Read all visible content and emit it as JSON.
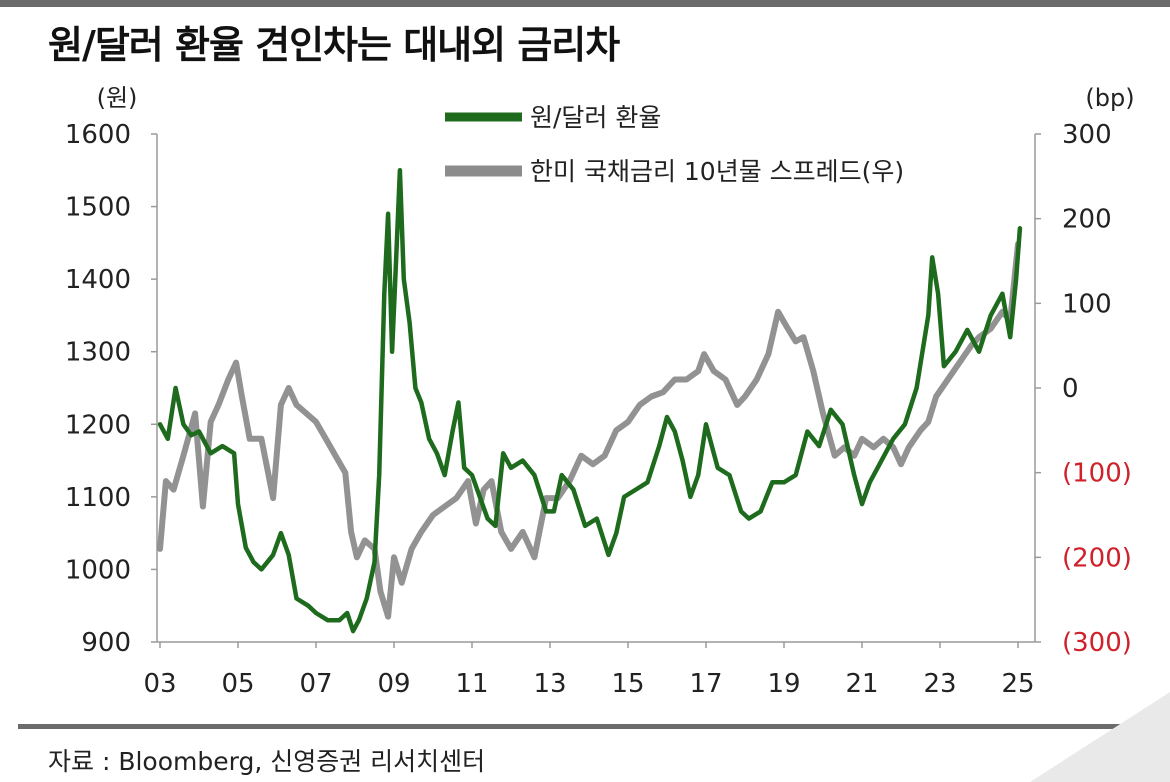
{
  "title": "원/달러 환율 견인차는 대내외 금리차",
  "source": "자료 : Bloomberg, 신영증권 리서치센터",
  "chart_data": {
    "type": "line",
    "title": "원/달러 환율 견인차는 대내외 금리차",
    "left_axis": {
      "unit_label": "(원)",
      "ticks": [
        "1600",
        "1500",
        "1400",
        "1300",
        "1200",
        "1100",
        "1000",
        "900"
      ],
      "range": [
        900,
        1600
      ]
    },
    "right_axis": {
      "unit_label": "(bp)",
      "ticks": [
        "300",
        "200",
        "100",
        "0",
        "(100)",
        "(200)",
        "(300)"
      ],
      "range": [
        -300,
        300
      ],
      "negative_color": "#d0202a"
    },
    "x_axis": {
      "ticks": [
        "03",
        "05",
        "07",
        "09",
        "11",
        "13",
        "15",
        "17",
        "19",
        "21",
        "23",
        "25"
      ],
      "range": [
        2003,
        2025
      ]
    },
    "legend_position": "top-center",
    "grid": false,
    "series": [
      {
        "name": "원/달러 환율",
        "axis": "left",
        "color": "#1e6b1e",
        "points": [
          [
            2003.0,
            1200
          ],
          [
            2003.2,
            1180
          ],
          [
            2003.4,
            1250
          ],
          [
            2003.6,
            1200
          ],
          [
            2003.8,
            1185
          ],
          [
            2004.0,
            1190
          ],
          [
            2004.3,
            1160
          ],
          [
            2004.6,
            1170
          ],
          [
            2004.9,
            1160
          ],
          [
            2005.0,
            1090
          ],
          [
            2005.2,
            1030
          ],
          [
            2005.4,
            1010
          ],
          [
            2005.6,
            1000
          ],
          [
            2005.9,
            1020
          ],
          [
            2006.1,
            1050
          ],
          [
            2006.3,
            1020
          ],
          [
            2006.5,
            960
          ],
          [
            2006.8,
            950
          ],
          [
            2007.0,
            940
          ],
          [
            2007.3,
            930
          ],
          [
            2007.6,
            930
          ],
          [
            2007.8,
            940
          ],
          [
            2007.95,
            915
          ],
          [
            2008.1,
            930
          ],
          [
            2008.3,
            960
          ],
          [
            2008.5,
            1010
          ],
          [
            2008.62,
            1130
          ],
          [
            2008.75,
            1380
          ],
          [
            2008.85,
            1490
          ],
          [
            2008.95,
            1300
          ],
          [
            2009.05,
            1420
          ],
          [
            2009.15,
            1550
          ],
          [
            2009.25,
            1400
          ],
          [
            2009.4,
            1340
          ],
          [
            2009.55,
            1250
          ],
          [
            2009.7,
            1230
          ],
          [
            2009.9,
            1180
          ],
          [
            2010.1,
            1160
          ],
          [
            2010.3,
            1130
          ],
          [
            2010.5,
            1190
          ],
          [
            2010.65,
            1230
          ],
          [
            2010.8,
            1140
          ],
          [
            2011.0,
            1130
          ],
          [
            2011.2,
            1100
          ],
          [
            2011.4,
            1070
          ],
          [
            2011.6,
            1060
          ],
          [
            2011.8,
            1160
          ],
          [
            2012.0,
            1140
          ],
          [
            2012.3,
            1150
          ],
          [
            2012.6,
            1130
          ],
          [
            2012.9,
            1080
          ],
          [
            2013.1,
            1080
          ],
          [
            2013.3,
            1130
          ],
          [
            2013.6,
            1110
          ],
          [
            2013.9,
            1060
          ],
          [
            2014.2,
            1070
          ],
          [
            2014.5,
            1020
          ],
          [
            2014.7,
            1050
          ],
          [
            2014.9,
            1100
          ],
          [
            2015.2,
            1110
          ],
          [
            2015.5,
            1120
          ],
          [
            2015.8,
            1170
          ],
          [
            2016.0,
            1210
          ],
          [
            2016.2,
            1190
          ],
          [
            2016.4,
            1150
          ],
          [
            2016.6,
            1100
          ],
          [
            2016.8,
            1130
          ],
          [
            2017.0,
            1200
          ],
          [
            2017.3,
            1140
          ],
          [
            2017.6,
            1130
          ],
          [
            2017.9,
            1080
          ],
          [
            2018.1,
            1070
          ],
          [
            2018.4,
            1080
          ],
          [
            2018.7,
            1120
          ],
          [
            2019.0,
            1120
          ],
          [
            2019.3,
            1130
          ],
          [
            2019.6,
            1190
          ],
          [
            2019.9,
            1170
          ],
          [
            2020.2,
            1220
          ],
          [
            2020.5,
            1200
          ],
          [
            2020.8,
            1130
          ],
          [
            2021.0,
            1090
          ],
          [
            2021.2,
            1120
          ],
          [
            2021.5,
            1150
          ],
          [
            2021.8,
            1180
          ],
          [
            2022.1,
            1200
          ],
          [
            2022.4,
            1250
          ],
          [
            2022.7,
            1350
          ],
          [
            2022.8,
            1430
          ],
          [
            2022.95,
            1380
          ],
          [
            2023.1,
            1280
          ],
          [
            2023.4,
            1300
          ],
          [
            2023.7,
            1330
          ],
          [
            2024.0,
            1300
          ],
          [
            2024.3,
            1350
          ],
          [
            2024.6,
            1380
          ],
          [
            2024.8,
            1320
          ],
          [
            2024.95,
            1400
          ],
          [
            2025.05,
            1470
          ]
        ]
      },
      {
        "name": "한미 국채금리 10년물 스프레드(우)",
        "axis": "right",
        "color": "#8c8c8c",
        "points": [
          [
            2003.0,
            -190
          ],
          [
            2003.15,
            -110
          ],
          [
            2003.35,
            -120
          ],
          [
            2003.6,
            -80
          ],
          [
            2003.9,
            -30
          ],
          [
            2004.1,
            -140
          ],
          [
            2004.3,
            -40
          ],
          [
            2004.5,
            -20
          ],
          [
            2004.75,
            10
          ],
          [
            2004.95,
            30
          ],
          [
            2005.1,
            -10
          ],
          [
            2005.3,
            -60
          ],
          [
            2005.6,
            -60
          ],
          [
            2005.9,
            -130
          ],
          [
            2006.1,
            -20
          ],
          [
            2006.3,
            0
          ],
          [
            2006.5,
            -20
          ],
          [
            2006.75,
            -30
          ],
          [
            2007.0,
            -40
          ],
          [
            2007.25,
            -60
          ],
          [
            2007.5,
            -80
          ],
          [
            2007.75,
            -100
          ],
          [
            2007.9,
            -170
          ],
          [
            2008.05,
            -200
          ],
          [
            2008.25,
            -180
          ],
          [
            2008.5,
            -190
          ],
          [
            2008.65,
            -240
          ],
          [
            2008.85,
            -270
          ],
          [
            2009.0,
            -200
          ],
          [
            2009.2,
            -230
          ],
          [
            2009.45,
            -190
          ],
          [
            2009.7,
            -170
          ],
          [
            2010.0,
            -150
          ],
          [
            2010.3,
            -140
          ],
          [
            2010.6,
            -130
          ],
          [
            2010.9,
            -110
          ],
          [
            2011.1,
            -160
          ],
          [
            2011.3,
            -120
          ],
          [
            2011.5,
            -110
          ],
          [
            2011.75,
            -170
          ],
          [
            2012.0,
            -190
          ],
          [
            2012.3,
            -170
          ],
          [
            2012.6,
            -200
          ],
          [
            2012.9,
            -130
          ],
          [
            2013.2,
            -130
          ],
          [
            2013.5,
            -110
          ],
          [
            2013.8,
            -80
          ],
          [
            2014.1,
            -90
          ],
          [
            2014.4,
            -80
          ],
          [
            2014.7,
            -50
          ],
          [
            2015.0,
            -40
          ],
          [
            2015.3,
            -20
          ],
          [
            2015.6,
            -10
          ],
          [
            2015.9,
            -5
          ],
          [
            2016.2,
            10
          ],
          [
            2016.5,
            10
          ],
          [
            2016.8,
            20
          ],
          [
            2016.95,
            40
          ],
          [
            2017.2,
            20
          ],
          [
            2017.5,
            10
          ],
          [
            2017.8,
            -20
          ],
          [
            2018.0,
            -10
          ],
          [
            2018.3,
            10
          ],
          [
            2018.6,
            40
          ],
          [
            2018.85,
            90
          ],
          [
            2019.1,
            70
          ],
          [
            2019.3,
            55
          ],
          [
            2019.5,
            60
          ],
          [
            2019.75,
            20
          ],
          [
            2020.0,
            -30
          ],
          [
            2020.3,
            -80
          ],
          [
            2020.55,
            -70
          ],
          [
            2020.8,
            -80
          ],
          [
            2021.0,
            -60
          ],
          [
            2021.3,
            -70
          ],
          [
            2021.55,
            -60
          ],
          [
            2021.8,
            -70
          ],
          [
            2022.0,
            -90
          ],
          [
            2022.2,
            -70
          ],
          [
            2022.5,
            -50
          ],
          [
            2022.7,
            -40
          ],
          [
            2022.9,
            -10
          ],
          [
            2023.2,
            10
          ],
          [
            2023.5,
            30
          ],
          [
            2023.8,
            50
          ],
          [
            2024.0,
            60
          ],
          [
            2024.3,
            70
          ],
          [
            2024.6,
            90
          ],
          [
            2024.8,
            80
          ],
          [
            2025.0,
            170
          ]
        ]
      }
    ]
  }
}
